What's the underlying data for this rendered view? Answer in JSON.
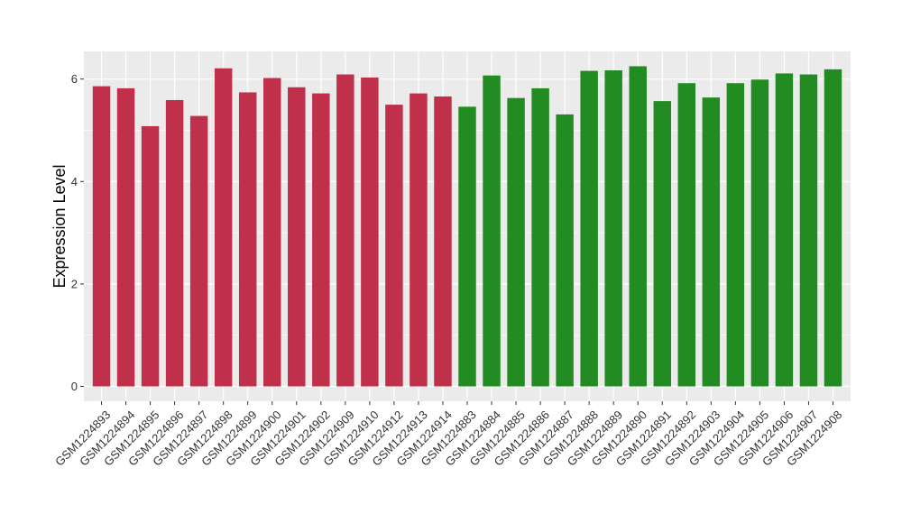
{
  "chart_data": {
    "type": "bar",
    "title": "",
    "xlabel": "",
    "ylabel": "Expression Level",
    "ylim": [
      0,
      6.54
    ],
    "yticks": [
      0,
      2,
      4,
      6
    ],
    "grid": true,
    "legend": "none",
    "colors": {
      "group1": "#c0304a",
      "group2": "#228b22",
      "panel": "#ebebeb",
      "gridline": "#ffffff"
    },
    "categories": [
      "GSM1224893",
      "GSM1224894",
      "GSM1224895",
      "GSM1224896",
      "GSM1224897",
      "GSM1224898",
      "GSM1224899",
      "GSM1224900",
      "GSM1224901",
      "GSM1224902",
      "GSM1224909",
      "GSM1224910",
      "GSM1224912",
      "GSM1224913",
      "GSM1224914",
      "GSM1224883",
      "GSM1224884",
      "GSM1224885",
      "GSM1224886",
      "GSM1224887",
      "GSM1224888",
      "GSM1224889",
      "GSM1224890",
      "GSM1224891",
      "GSM1224892",
      "GSM1224903",
      "GSM1224904",
      "GSM1224905",
      "GSM1224906",
      "GSM1224907",
      "GSM1224908"
    ],
    "values": [
      5.86,
      5.82,
      5.08,
      5.59,
      5.28,
      6.21,
      5.74,
      6.02,
      5.84,
      5.72,
      6.09,
      6.03,
      5.5,
      5.72,
      5.66,
      5.46,
      6.07,
      5.63,
      5.82,
      5.31,
      6.16,
      6.17,
      6.25,
      5.57,
      5.92,
      5.64,
      5.92,
      5.99,
      6.11,
      6.09,
      6.19
    ],
    "groups": [
      "group1",
      "group1",
      "group1",
      "group1",
      "group1",
      "group1",
      "group1",
      "group1",
      "group1",
      "group1",
      "group1",
      "group1",
      "group1",
      "group1",
      "group1",
      "group2",
      "group2",
      "group2",
      "group2",
      "group2",
      "group2",
      "group2",
      "group2",
      "group2",
      "group2",
      "group2",
      "group2",
      "group2",
      "group2",
      "group2",
      "group2"
    ]
  }
}
